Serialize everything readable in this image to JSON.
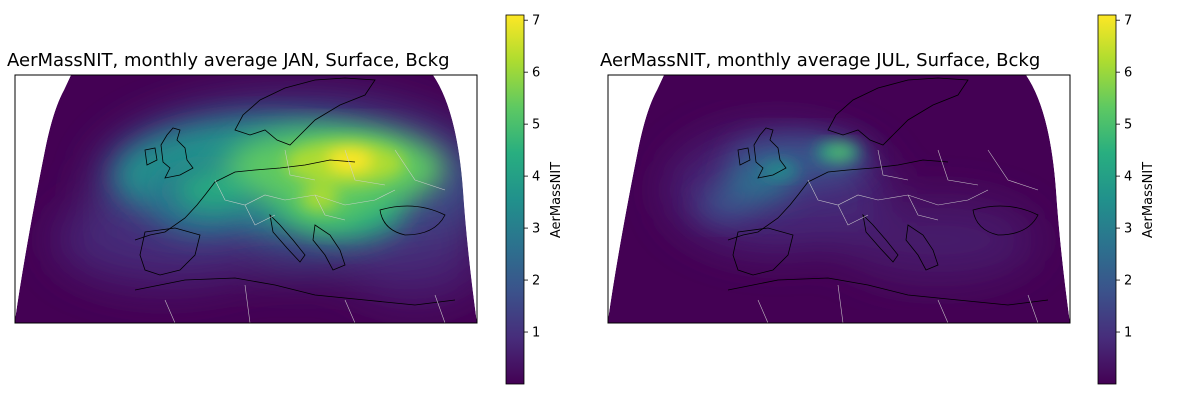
{
  "maps": [
    {
      "title": "AerMassNIT, monthly average JAN, Surface, Bckg",
      "colorbar": {
        "label": "AerMassNIT",
        "min": 0,
        "max": 7.1,
        "ticks": [
          "1",
          "2",
          "3",
          "4",
          "5",
          "6",
          "7"
        ]
      },
      "colormap": "viridis",
      "hotspots": [
        {
          "lon": 26,
          "lat": 53,
          "value": 6.8
        },
        {
          "lon": 20,
          "lat": 48,
          "value": 5.8
        },
        {
          "lon": 10,
          "lat": 52,
          "value": 4.5
        },
        {
          "lon": 4,
          "lat": 50,
          "value": 3.5
        },
        {
          "lon": 12,
          "lat": 45,
          "value": 3.5
        },
        {
          "lon": 0,
          "lat": 47,
          "value": 3.0
        }
      ]
    },
    {
      "title": "AerMassNIT, monthly average JUL, Surface, Bckg",
      "colorbar": {
        "label": "AerMassNIT",
        "min": 0,
        "max": 7.1,
        "ticks": [
          "1",
          "2",
          "3",
          "4",
          "5",
          "6",
          "7"
        ]
      },
      "colormap": "viridis",
      "hotspots": [
        {
          "lon": 11,
          "lat": 54,
          "value": 5.8
        },
        {
          "lon": 4,
          "lat": 52,
          "value": 4.2
        },
        {
          "lon": -1,
          "lat": 50,
          "value": 3.2
        },
        {
          "lon": -4,
          "lat": 48,
          "value": 2.5
        },
        {
          "lon": 8,
          "lat": 51,
          "value": 2.5
        }
      ]
    }
  ]
}
